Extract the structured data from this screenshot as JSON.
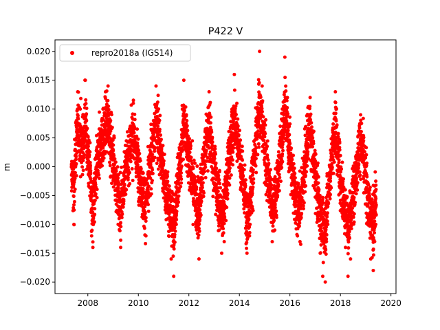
{
  "chart_data": {
    "type": "scatter",
    "title": "P422 V",
    "xlabel": "",
    "ylabel": "m",
    "xlim": [
      2006.7,
      2020.2
    ],
    "ylim": [
      -0.022,
      0.022
    ],
    "xticks": [
      2008,
      2010,
      2012,
      2014,
      2016,
      2018,
      2020
    ],
    "xtick_labels": [
      "2008",
      "2010",
      "2012",
      "2014",
      "2016",
      "2018",
      "2020"
    ],
    "yticks": [
      -0.02,
      -0.015,
      -0.01,
      -0.005,
      0.0,
      0.005,
      0.01,
      0.015,
      0.02
    ],
    "ytick_labels": [
      "−0.020",
      "−0.015",
      "−0.010",
      "−0.005",
      "0.000",
      "0.005",
      "0.010",
      "0.015",
      "0.020"
    ],
    "legend": "top-left",
    "grid": false,
    "series": [
      {
        "name": "repro2018a (IGS14)",
        "color": "#ff0000",
        "marker": "circle",
        "x_range": [
          2007.35,
          2019.42
        ],
        "description": "daily vertical position residuals, seasonal oscillation",
        "points": [
          [
            2007.4,
            -0.003
          ],
          [
            2007.45,
            -0.01
          ],
          [
            2007.5,
            0.003
          ],
          [
            2007.55,
            0.008
          ],
          [
            2007.6,
            0.013
          ],
          [
            2007.7,
            0.01
          ],
          [
            2007.8,
            0.006
          ],
          [
            2007.9,
            0.015
          ],
          [
            2008.0,
            0.004
          ],
          [
            2008.1,
            -0.002
          ],
          [
            2008.15,
            -0.012
          ],
          [
            2008.2,
            -0.014
          ],
          [
            2008.3,
            -0.005
          ],
          [
            2008.4,
            0.002
          ],
          [
            2008.5,
            0.006
          ],
          [
            2008.6,
            0.01
          ],
          [
            2008.7,
            0.013
          ],
          [
            2008.8,
            0.014
          ],
          [
            2008.9,
            0.008
          ],
          [
            2009.0,
            0.003
          ],
          [
            2009.1,
            -0.003
          ],
          [
            2009.2,
            -0.01
          ],
          [
            2009.3,
            -0.014
          ],
          [
            2009.4,
            -0.007
          ],
          [
            2009.5,
            0.0
          ],
          [
            2009.6,
            0.003
          ],
          [
            2009.7,
            0.006
          ],
          [
            2009.8,
            0.011
          ],
          [
            2009.9,
            0.004
          ],
          [
            2010.0,
            0.001
          ],
          [
            2010.1,
            -0.004
          ],
          [
            2010.2,
            -0.009
          ],
          [
            2010.3,
            -0.012
          ],
          [
            2010.4,
            -0.005
          ],
          [
            2010.5,
            0.002
          ],
          [
            2010.6,
            0.008
          ],
          [
            2010.7,
            0.014
          ],
          [
            2010.8,
            0.01
          ],
          [
            2010.9,
            0.003
          ],
          [
            2011.0,
            -0.003
          ],
          [
            2011.1,
            -0.008
          ],
          [
            2011.2,
            -0.012
          ],
          [
            2011.3,
            -0.016
          ],
          [
            2011.4,
            -0.019
          ],
          [
            2011.5,
            -0.01
          ],
          [
            2011.6,
            -0.003
          ],
          [
            2011.7,
            0.004
          ],
          [
            2011.8,
            0.015
          ],
          [
            2011.9,
            0.009
          ],
          [
            2012.0,
            0.004
          ],
          [
            2012.1,
            -0.002
          ],
          [
            2012.2,
            -0.006
          ],
          [
            2012.3,
            -0.01
          ],
          [
            2012.4,
            -0.016
          ],
          [
            2012.5,
            -0.006
          ],
          [
            2012.6,
            0.002
          ],
          [
            2012.7,
            0.008
          ],
          [
            2012.8,
            0.013
          ],
          [
            2012.9,
            0.006
          ],
          [
            2013.0,
            -0.001
          ],
          [
            2013.1,
            -0.006
          ],
          [
            2013.2,
            -0.011
          ],
          [
            2013.3,
            -0.015
          ],
          [
            2013.4,
            -0.013
          ],
          [
            2013.5,
            -0.004
          ],
          [
            2013.6,
            0.003
          ],
          [
            2013.7,
            0.009
          ],
          [
            2013.8,
            0.016
          ],
          [
            2013.9,
            0.011
          ],
          [
            2014.0,
            0.004
          ],
          [
            2014.1,
            -0.002
          ],
          [
            2014.2,
            -0.008
          ],
          [
            2014.3,
            -0.015
          ],
          [
            2014.4,
            -0.012
          ],
          [
            2014.5,
            -0.004
          ],
          [
            2014.6,
            0.003
          ],
          [
            2014.7,
            0.01
          ],
          [
            2014.8,
            0.02
          ],
          [
            2014.9,
            0.014
          ],
          [
            2015.0,
            0.006
          ],
          [
            2015.1,
            -0.001
          ],
          [
            2015.2,
            -0.007
          ],
          [
            2015.3,
            -0.013
          ],
          [
            2015.4,
            -0.011
          ],
          [
            2015.5,
            -0.005
          ],
          [
            2015.6,
            0.002
          ],
          [
            2015.7,
            0.01
          ],
          [
            2015.8,
            0.019
          ],
          [
            2015.9,
            0.012
          ],
          [
            2016.0,
            0.004
          ],
          [
            2016.1,
            -0.003
          ],
          [
            2016.2,
            -0.008
          ],
          [
            2016.3,
            -0.012
          ],
          [
            2016.4,
            -0.013
          ],
          [
            2016.5,
            -0.006
          ],
          [
            2016.6,
            0.001
          ],
          [
            2016.7,
            0.008
          ],
          [
            2016.8,
            0.012
          ],
          [
            2016.9,
            0.005
          ],
          [
            2017.0,
            -0.002
          ],
          [
            2017.1,
            -0.009
          ],
          [
            2017.2,
            -0.015
          ],
          [
            2017.3,
            -0.019
          ],
          [
            2017.4,
            -0.02
          ],
          [
            2017.5,
            -0.01
          ],
          [
            2017.6,
            -0.002
          ],
          [
            2017.7,
            0.006
          ],
          [
            2017.8,
            0.013
          ],
          [
            2017.9,
            0.004
          ],
          [
            2018.0,
            -0.003
          ],
          [
            2018.1,
            -0.009
          ],
          [
            2018.2,
            -0.014
          ],
          [
            2018.3,
            -0.019
          ],
          [
            2018.4,
            -0.016
          ],
          [
            2018.5,
            -0.008
          ],
          [
            2018.6,
            -0.002
          ],
          [
            2018.7,
            0.004
          ],
          [
            2018.8,
            0.009
          ],
          [
            2018.9,
            0.003
          ],
          [
            2019.0,
            -0.004
          ],
          [
            2019.1,
            -0.01
          ],
          [
            2019.2,
            -0.016
          ],
          [
            2019.3,
            -0.018
          ],
          [
            2019.4,
            -0.01
          ]
        ]
      }
    ]
  }
}
